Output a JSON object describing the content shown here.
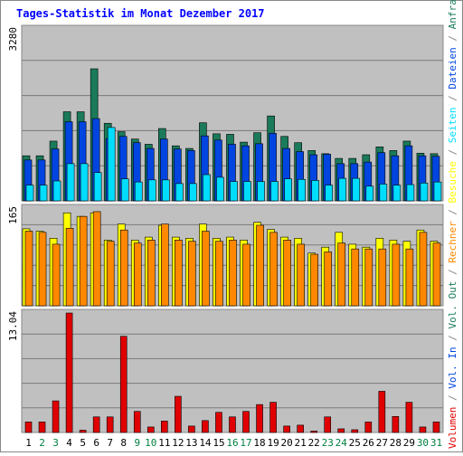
{
  "chart_data": {
    "type": "bar",
    "title": "Tages-Statistik im Monat Dezember 2017",
    "colors": {
      "background": "#c0c0c0",
      "border": "#888888",
      "title": "#0000ff",
      "anfragen": "#1a7a5a",
      "dateien": "#0045e0",
      "seiten": "#00ddff",
      "besuche": "#ffff00",
      "rechner": "#ff8800",
      "volumen": "#e00000",
      "weekday": "#000000",
      "weekend": "#008040"
    },
    "categories": [
      "1",
      "2",
      "3",
      "4",
      "5",
      "6",
      "7",
      "8",
      "9",
      "10",
      "11",
      "12",
      "13",
      "14",
      "15",
      "16",
      "17",
      "18",
      "19",
      "20",
      "21",
      "22",
      "23",
      "24",
      "25",
      "26",
      "27",
      "28",
      "29",
      "30",
      "31"
    ],
    "weekend_days": [
      2,
      3,
      9,
      10,
      16,
      17,
      23,
      24,
      30,
      31
    ],
    "top_panel": {
      "ymax_label": "3280",
      "ylim": [
        0,
        3280
      ],
      "series": [
        {
          "name": "Anfragen",
          "values": [
            860,
            860,
            1140,
            1700,
            1700,
            2520,
            1480,
            1320,
            1180,
            1080,
            1380,
            1050,
            1000,
            1490,
            1280,
            1270,
            1120,
            1300,
            1620,
            1230,
            1110,
            960,
            900,
            810,
            810,
            880,
            1030,
            960,
            1140,
            910,
            900
          ]
        },
        {
          "name": "Dateien",
          "values": [
            780,
            780,
            990,
            1510,
            1510,
            1570,
            1190,
            1230,
            1110,
            1000,
            1180,
            990,
            960,
            1240,
            1160,
            1080,
            1050,
            1090,
            1290,
            1000,
            940,
            880,
            890,
            710,
            710,
            740,
            920,
            860,
            1050,
            860,
            850
          ]
        },
        {
          "name": "Seiten",
          "values": [
            300,
            300,
            380,
            710,
            710,
            540,
            1400,
            420,
            360,
            400,
            400,
            330,
            330,
            500,
            450,
            370,
            370,
            370,
            370,
            420,
            410,
            390,
            300,
            430,
            430,
            280,
            320,
            300,
            310,
            340,
            360
          ]
        }
      ]
    },
    "middle_panel": {
      "ymax_label": "165",
      "ylim": [
        0,
        165
      ],
      "series": [
        {
          "name": "Besuche",
          "values": [
            130,
            126,
            114,
            157,
            151,
            157,
            111,
            138,
            111,
            116,
            136,
            116,
            114,
            138,
            114,
            116,
            111,
            141,
            129,
            116,
            114,
            89,
            99,
            124,
            104,
            99,
            114,
            111,
            109,
            128,
            109
          ]
        },
        {
          "name": "Rechner",
          "values": [
            126,
            124,
            104,
            131,
            151,
            159,
            109,
            128,
            106,
            111,
            138,
            111,
            109,
            126,
            109,
            111,
            104,
            136,
            124,
            111,
            104,
            87,
            91,
            106,
            96,
            96,
            96,
            104,
            96,
            124,
            106
          ]
        }
      ]
    },
    "bottom_panel": {
      "ymax_label": "13.04",
      "ylim": [
        0,
        13.04
      ],
      "series": [
        {
          "name": "Volumen",
          "values": [
            1.15,
            1.15,
            3.45,
            13.04,
            0.25,
            1.7,
            1.7,
            10.5,
            2.3,
            0.6,
            1.25,
            3.95,
            0.7,
            1.3,
            2.2,
            1.7,
            2.3,
            3.05,
            3.3,
            0.7,
            0.8,
            0.15,
            1.7,
            0.4,
            0.3,
            1.15,
            4.5,
            1.75,
            3.3,
            0.6,
            1.15
          ]
        }
      ]
    },
    "legend": {
      "vertical_right": [
        {
          "text": "Volumen",
          "color_key": "volumen"
        },
        {
          "text": " / ",
          "color_key": "border"
        },
        {
          "text": "Vol. In",
          "color_key": "dateien"
        },
        {
          "text": " / ",
          "color_key": "border"
        },
        {
          "text": "Vol. Out",
          "color_key": "anfragen"
        },
        {
          "text": " / ",
          "color_key": "border"
        },
        {
          "text": "Rechner",
          "color_key": "rechner"
        },
        {
          "text": " / ",
          "color_key": "border"
        },
        {
          "text": "Besuche",
          "color_key": "besuche"
        },
        {
          "text": " / ",
          "color_key": "border"
        },
        {
          "text": "Seiten",
          "color_key": "seiten"
        },
        {
          "text": " / ",
          "color_key": "border"
        },
        {
          "text": "Dateien",
          "color_key": "dateien"
        },
        {
          "text": " / ",
          "color_key": "border"
        },
        {
          "text": "Anfragen",
          "color_key": "anfragen"
        }
      ]
    },
    "grid": true
  }
}
